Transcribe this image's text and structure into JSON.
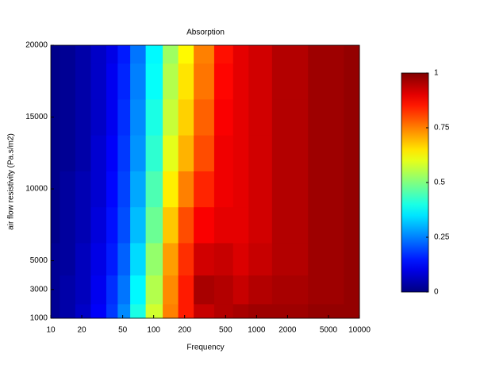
{
  "chart_data": {
    "type": "heatmap",
    "title": "Absorption",
    "x_label": "Frequency",
    "y_label": "air flow resistivity (Pa.s/m2)",
    "x_log": true,
    "colormap": "jet",
    "x": [
      10,
      15,
      20,
      30,
      40,
      50,
      70,
      100,
      150,
      200,
      300,
      500,
      700,
      1000,
      2000,
      5000,
      10000
    ],
    "y": [
      1000,
      3000,
      5000,
      7500,
      10000,
      12500,
      15000,
      17500,
      20000
    ],
    "z": [
      [
        0.02,
        0.04,
        0.07,
        0.12,
        0.18,
        0.26,
        0.4,
        0.58,
        0.75,
        0.85,
        0.93,
        0.95,
        0.96,
        0.97,
        0.97,
        0.98,
        0.98
      ],
      [
        0.02,
        0.04,
        0.06,
        0.11,
        0.17,
        0.24,
        0.37,
        0.55,
        0.74,
        0.85,
        0.96,
        0.95,
        0.93,
        0.95,
        0.96,
        0.97,
        0.98
      ],
      [
        0.02,
        0.03,
        0.06,
        0.1,
        0.15,
        0.22,
        0.34,
        0.52,
        0.72,
        0.83,
        0.92,
        0.93,
        0.91,
        0.93,
        0.95,
        0.97,
        0.98
      ],
      [
        0.01,
        0.03,
        0.05,
        0.09,
        0.14,
        0.2,
        0.31,
        0.48,
        0.68,
        0.8,
        0.88,
        0.9,
        0.9,
        0.92,
        0.95,
        0.97,
        0.98
      ],
      [
        0.01,
        0.03,
        0.05,
        0.08,
        0.13,
        0.19,
        0.29,
        0.45,
        0.64,
        0.75,
        0.84,
        0.89,
        0.9,
        0.92,
        0.95,
        0.97,
        0.98
      ],
      [
        0.01,
        0.02,
        0.04,
        0.08,
        0.12,
        0.18,
        0.27,
        0.42,
        0.6,
        0.7,
        0.8,
        0.89,
        0.9,
        0.92,
        0.95,
        0.97,
        0.98
      ],
      [
        0.01,
        0.02,
        0.04,
        0.07,
        0.11,
        0.17,
        0.26,
        0.4,
        0.57,
        0.67,
        0.78,
        0.88,
        0.9,
        0.92,
        0.95,
        0.97,
        0.98
      ],
      [
        0.01,
        0.02,
        0.04,
        0.07,
        0.11,
        0.16,
        0.25,
        0.38,
        0.55,
        0.65,
        0.76,
        0.87,
        0.9,
        0.92,
        0.95,
        0.97,
        0.98
      ],
      [
        0.01,
        0.02,
        0.04,
        0.07,
        0.1,
        0.15,
        0.24,
        0.37,
        0.53,
        0.63,
        0.75,
        0.86,
        0.9,
        0.92,
        0.95,
        0.97,
        0.98
      ]
    ],
    "xlim": [
      10,
      10000
    ],
    "xticks": [
      10,
      20,
      50,
      100,
      200,
      500,
      1000,
      2000,
      5000,
      10000
    ],
    "ylim": [
      1000,
      20000
    ],
    "yticks": [
      1000,
      3000,
      5000,
      10000,
      15000,
      20000
    ],
    "colorbar": {
      "lim": [
        0,
        1
      ],
      "ticks": [
        0,
        0.25,
        0.5,
        0.75,
        1
      ]
    }
  }
}
